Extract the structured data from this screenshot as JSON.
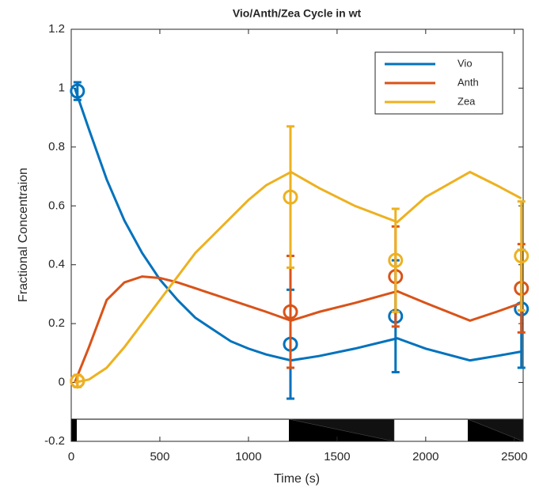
{
  "chart_data": {
    "type": "line",
    "title": "Vio/Anth/Zea Cycle in wt",
    "x_label": "Time (s)",
    "y_label": "Fractional Concentraion",
    "xlim": [
      0,
      2550
    ],
    "xticks": [
      0,
      500,
      1000,
      1500,
      2000,
      2500
    ],
    "ylim": [
      -0.2,
      1.2
    ],
    "yticks": [
      -0.2,
      0,
      0.2,
      0.4,
      0.6,
      0.8,
      1,
      1.2
    ],
    "legend": "top-right",
    "series": [
      {
        "name": "Vio",
        "color": "#0072BD",
        "x": [
          20,
          100,
          200,
          300,
          400,
          500,
          600,
          700,
          800,
          900,
          1000,
          1100,
          1240,
          1400,
          1600,
          1840,
          2000,
          2250,
          2400,
          2540
        ],
        "values": [
          1.0,
          0.86,
          0.69,
          0.55,
          0.44,
          0.35,
          0.28,
          0.22,
          0.18,
          0.14,
          0.115,
          0.095,
          0.075,
          0.09,
          0.115,
          0.15,
          0.115,
          0.075,
          0.09,
          0.105
        ],
        "points": {
          "x": [
            35,
            1237,
            1830,
            2540
          ],
          "values": [
            0.99,
            0.13,
            0.225,
            0.25
          ],
          "errors": [
            0.03,
            0.185,
            0.19,
            0.2
          ]
        }
      },
      {
        "name": "Anth",
        "color": "#D95319",
        "x": [
          20,
          100,
          200,
          300,
          400,
          500,
          600,
          700,
          800,
          900,
          1000,
          1100,
          1240,
          1400,
          1600,
          1840,
          2000,
          2250,
          2400,
          2540
        ],
        "values": [
          0.0,
          0.12,
          0.28,
          0.34,
          0.36,
          0.355,
          0.34,
          0.32,
          0.3,
          0.28,
          0.26,
          0.24,
          0.21,
          0.24,
          0.27,
          0.31,
          0.27,
          0.21,
          0.24,
          0.27
        ],
        "points": {
          "x": [
            35,
            1237,
            1830,
            2540
          ],
          "values": [
            0.005,
            0.24,
            0.36,
            0.32
          ],
          "errors": [
            0.02,
            0.19,
            0.17,
            0.15
          ]
        }
      },
      {
        "name": "Zea",
        "color": "#EDB120",
        "x": [
          20,
          100,
          200,
          300,
          400,
          500,
          600,
          700,
          800,
          900,
          1000,
          1100,
          1240,
          1400,
          1600,
          1840,
          2000,
          2250,
          2400,
          2540
        ],
        "values": [
          0.0,
          0.01,
          0.05,
          0.12,
          0.2,
          0.28,
          0.36,
          0.44,
          0.5,
          0.56,
          0.62,
          0.67,
          0.715,
          0.66,
          0.6,
          0.545,
          0.63,
          0.715,
          0.67,
          0.625
        ],
        "points": {
          "x": [
            35,
            1237,
            1830,
            2540
          ],
          "values": [
            0.005,
            0.63,
            0.415,
            0.43
          ],
          "errors": [
            0.02,
            0.24,
            0.175,
            0.185
          ]
        }
      }
    ]
  }
}
